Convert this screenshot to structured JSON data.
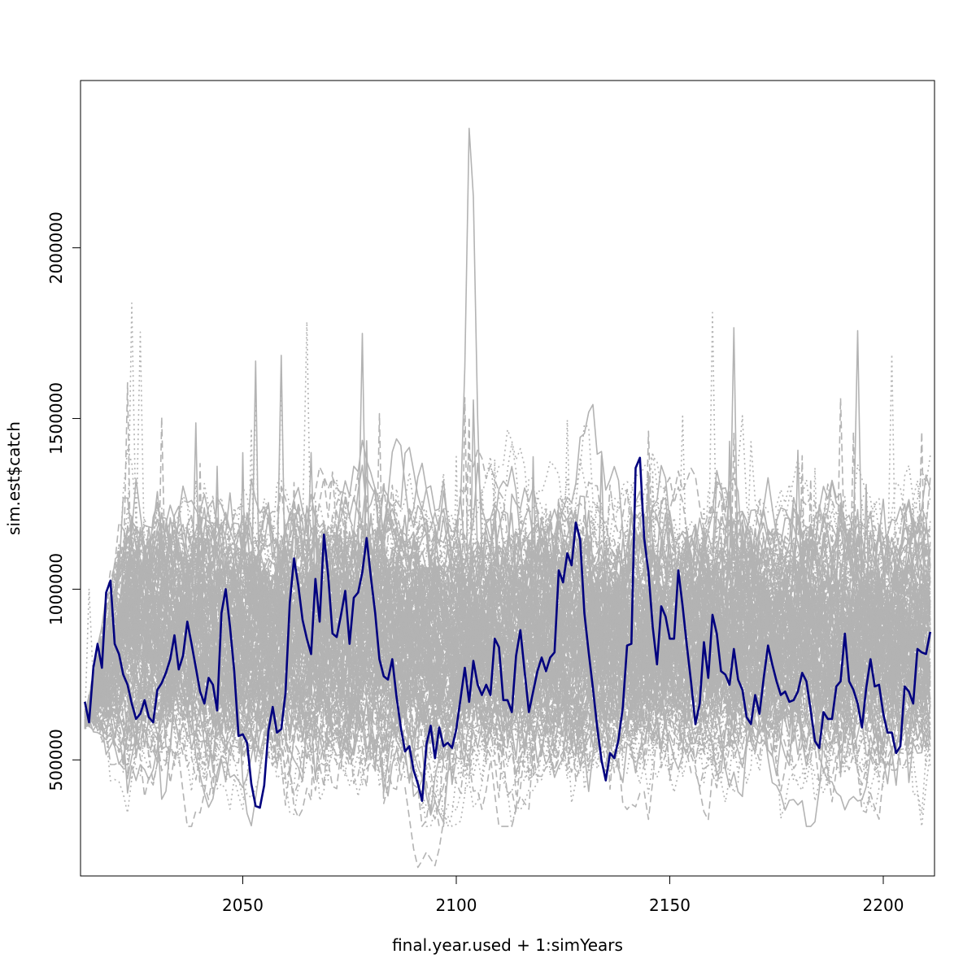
{
  "chart_data": {
    "type": "line",
    "title": "",
    "xlabel": "final.year.used + 1:simYears",
    "ylabel": "sim.est$catch",
    "xlim": [
      2012,
      2212
    ],
    "ylim": [
      160000,
      2490000
    ],
    "x_ticks": [
      2050,
      2100,
      2150,
      2200
    ],
    "x_tick_labels": [
      "2050",
      "2100",
      "2150",
      "2200"
    ],
    "y_ticks": [
      500000,
      1000000,
      1500000,
      2000000
    ],
    "y_tick_labels": [
      "500000",
      "1000000",
      "1500000",
      "2000000"
    ],
    "grid": false,
    "colors": {
      "simulations": "#b3b3b3",
      "highlight": "#00007f"
    },
    "simulation_ensemble": {
      "x_start": 2013,
      "x_end": 2211,
      "count": 150,
      "line_styles": [
        "solid",
        "dashed",
        "dotted"
      ],
      "typical_range": [
        400000,
        1300000
      ],
      "peak_max": 2350000,
      "peak_year": 2103,
      "min_value": 185000,
      "min_year": 2091
    },
    "highlight_series": {
      "name": "sim.est$catch",
      "x_start": 2013,
      "values": [
        670000,
        610000,
        770000,
        840000,
        770000,
        990000,
        1025000,
        840000,
        810000,
        750000,
        720000,
        665000,
        620000,
        635000,
        675000,
        625000,
        610000,
        705000,
        725000,
        755000,
        795000,
        865000,
        765000,
        805000,
        905000,
        840000,
        770000,
        700000,
        665000,
        740000,
        720000,
        645000,
        930000,
        1000000,
        890000,
        760000,
        570000,
        575000,
        550000,
        430000,
        365000,
        360000,
        425000,
        585000,
        655000,
        580000,
        590000,
        695000,
        960000,
        1090000,
        1010000,
        910000,
        855000,
        810000,
        1030000,
        905000,
        1160000,
        1040000,
        870000,
        860000,
        925000,
        995000,
        840000,
        975000,
        990000,
        1050000,
        1150000,
        1035000,
        930000,
        795000,
        745000,
        735000,
        795000,
        685000,
        595000,
        525000,
        540000,
        470000,
        430000,
        380000,
        545000,
        600000,
        505000,
        595000,
        540000,
        550000,
        535000,
        590000,
        680000,
        770000,
        670000,
        790000,
        720000,
        690000,
        720000,
        690000,
        855000,
        830000,
        675000,
        675000,
        640000,
        805000,
        880000,
        760000,
        640000,
        700000,
        760000,
        800000,
        760000,
        800000,
        815000,
        1055000,
        1020000,
        1105000,
        1070000,
        1195000,
        1145000,
        930000,
        815000,
        710000,
        595000,
        500000,
        440000,
        520000,
        505000,
        560000,
        655000,
        835000,
        840000,
        1355000,
        1385000,
        1150000,
        1050000,
        890000,
        780000,
        950000,
        920000,
        855000,
        855000,
        1055000,
        950000,
        835000,
        725000,
        605000,
        665000,
        845000,
        740000,
        925000,
        870000,
        760000,
        750000,
        720000,
        825000,
        735000,
        705000,
        625000,
        605000,
        690000,
        635000,
        740000,
        835000,
        780000,
        730000,
        690000,
        700000,
        670000,
        675000,
        700000,
        755000,
        730000,
        645000,
        555000,
        535000,
        640000,
        620000,
        620000,
        715000,
        730000,
        870000,
        730000,
        705000,
        665000,
        595000,
        710000,
        795000,
        715000,
        720000,
        635000,
        580000,
        580000,
        520000,
        540000,
        715000,
        700000,
        665000,
        825000,
        815000,
        810000,
        875000
      ]
    }
  }
}
